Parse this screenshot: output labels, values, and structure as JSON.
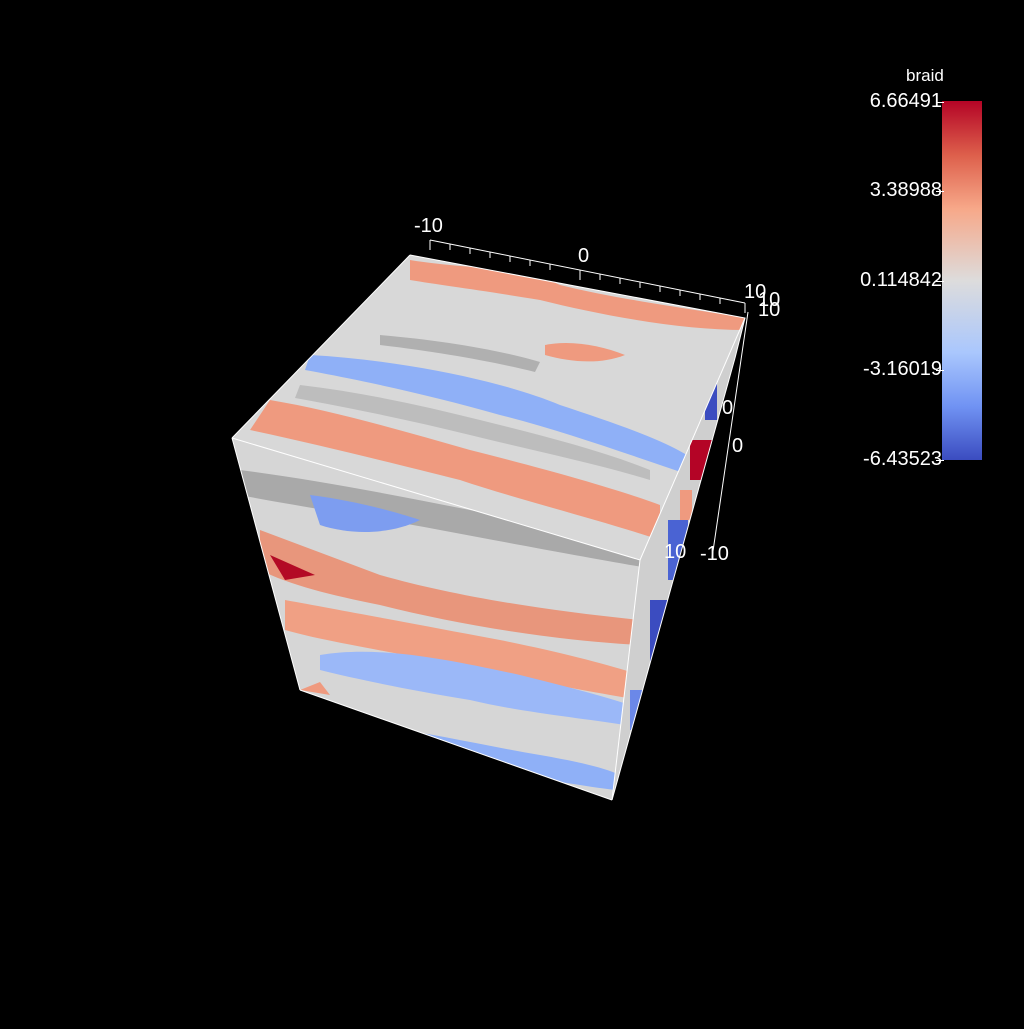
{
  "colorbar": {
    "title": "braid",
    "ticks": [
      "6.66491",
      "3.38988",
      "0.114842",
      "-3.16019",
      "-6.43523"
    ],
    "colors": [
      "#b40426",
      "#f7a889",
      "#dddcdc",
      "#aac7fd",
      "#3b4cc0"
    ]
  },
  "axes": {
    "top_axis": {
      "min_label": "-10",
      "mid_label": "0",
      "max_label": "10"
    },
    "right_axis_a": {
      "top_label": "10",
      "mid_label": "0",
      "bottom_label": "-10"
    },
    "right_axis_b": {
      "top_label": "10",
      "mid_label": "0",
      "bottom_label": "10"
    }
  }
}
